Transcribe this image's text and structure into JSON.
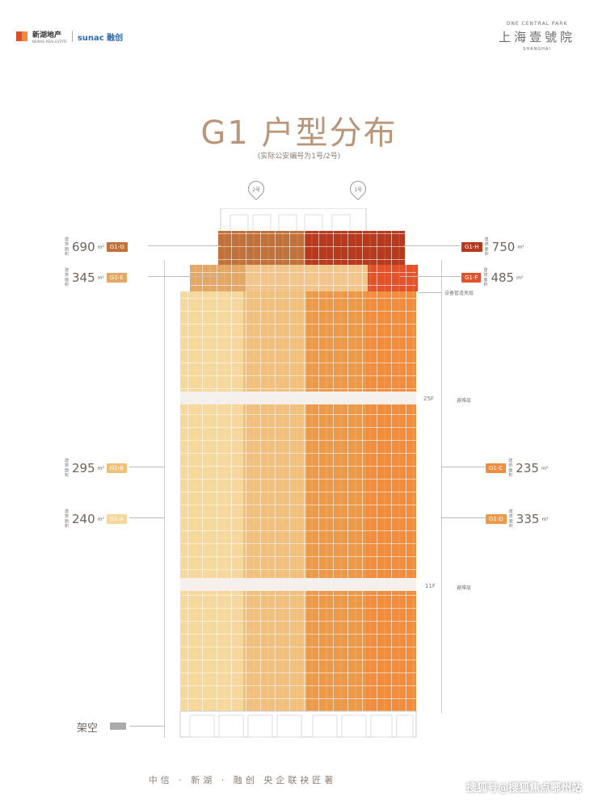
{
  "header": {
    "left_logo_cn": "新湖地产",
    "left_logo_en": "NEWHU REAL ESTATE",
    "sunac_logo": "sunac 融创",
    "right_logo_en": "ONE CENTRAL PARK",
    "right_logo_cn": "上海壹號院",
    "right_logo_sub": "SHANGHAI"
  },
  "title": "G1 户型分布",
  "subtitle": "(实际公安编号为1号/2号)",
  "pins": [
    "2号",
    "1号"
  ],
  "units": {
    "g1g": {
      "area": "690",
      "tag": "G1-G",
      "label": "建筑面积",
      "color": "#c0723a"
    },
    "g1e": {
      "area": "345",
      "tag": "G1-E",
      "label": "建筑面积",
      "color": "#e3a766"
    },
    "g1b": {
      "area": "295",
      "tag": "G1-B",
      "label": "建筑面积",
      "color": "#f1c07c"
    },
    "g1a": {
      "area": "240",
      "tag": "G1-A",
      "label": "建筑面积",
      "color": "#f6d79c"
    },
    "g1h": {
      "area": "750",
      "tag": "G1-H",
      "label": "建筑面积",
      "color": "#b83a1e"
    },
    "g1f": {
      "area": "485",
      "tag": "G1-F",
      "label": "建筑面积",
      "color": "#e4522a"
    },
    "g1c": {
      "area": "235",
      "tag": "G1-C",
      "label": "建筑面积",
      "color": "#f08e3e"
    },
    "g1d": {
      "area": "335",
      "tag": "G1-D",
      "label": "建筑面积",
      "color": "#ec9a4a"
    }
  },
  "unit_suffix": "m²",
  "floors": {
    "equipment_note": "设备管道夹层",
    "refuge_25": "25F",
    "refuge_11": "11F",
    "refuge_note": "避难层"
  },
  "stilts_label": "架空",
  "footer": "中信 · 新湖 · 融创   央企联袂匠著",
  "watermark": "搜狐号@搜狐焦点鄂州站"
}
